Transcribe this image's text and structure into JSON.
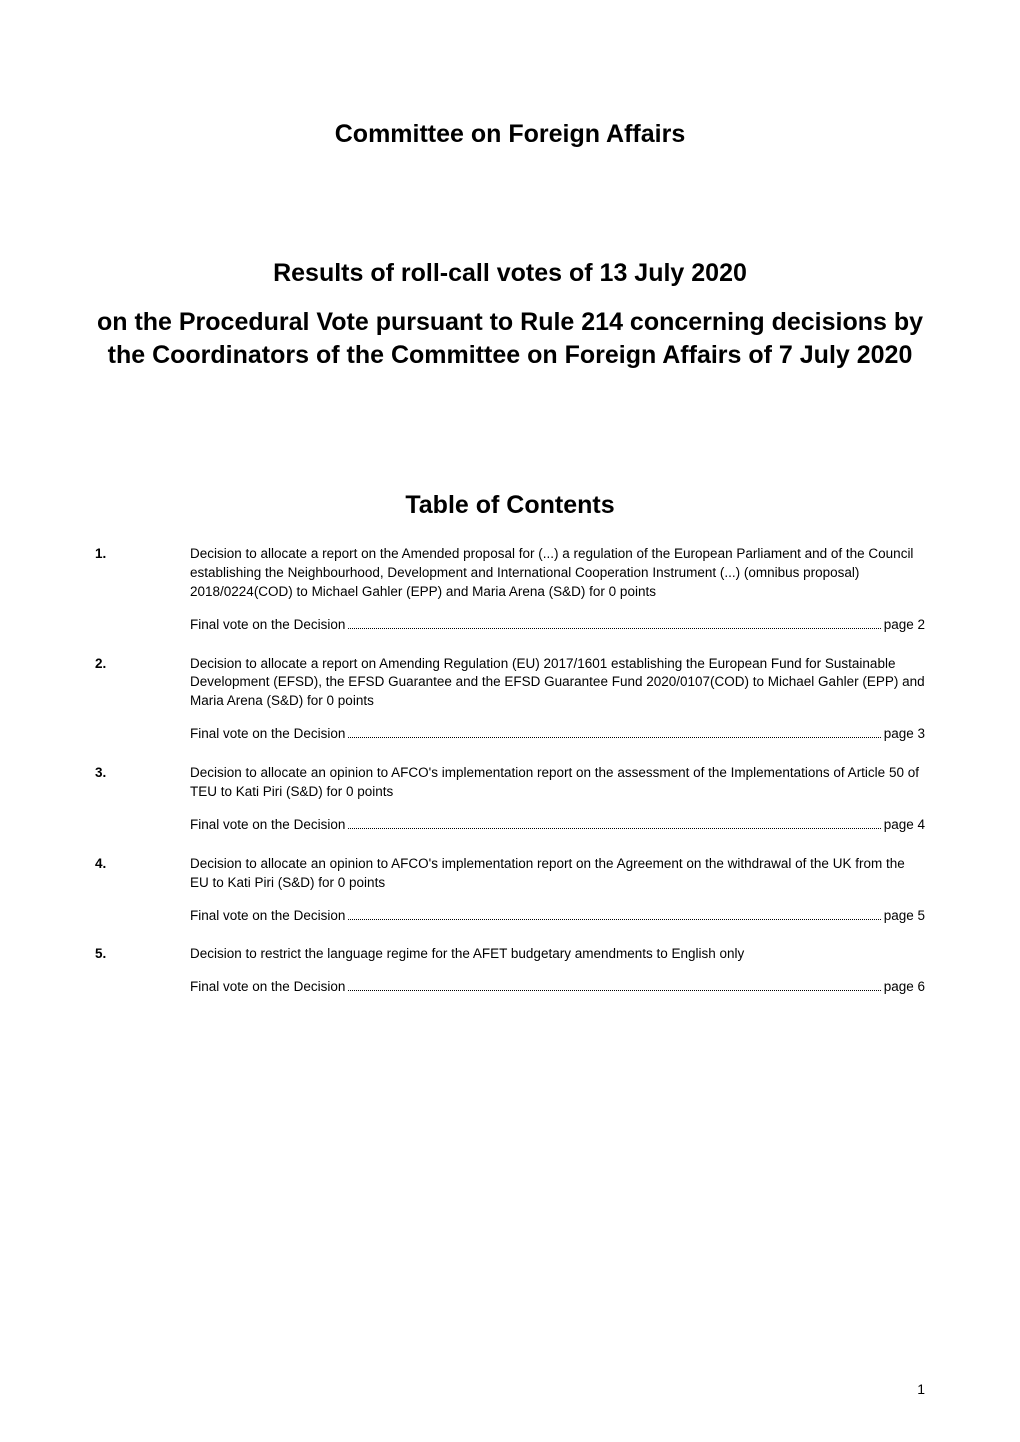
{
  "document": {
    "title": "Committee on Foreign Affairs",
    "subtitle_line1": "Results of roll-call votes of 13 July 2020",
    "subtitle_line2": "on the Procedural Vote pursuant to Rule 214 concerning decisions by the Coordinators of the Committee on Foreign Affairs of 7 July 2020",
    "toc_header": "Table of Contents",
    "page_number": "1",
    "background_color": "#ffffff",
    "text_color": "#000000",
    "title_fontsize": 25,
    "body_fontsize": 13.5,
    "toc_items": [
      {
        "number": "1.",
        "description": "Decision to allocate a report on the Amended proposal for (...) a regulation of the European Parliament and of the Council establishing the Neighbourhood, Development and International Cooperation Instrument (...) (omnibus proposal) 2018/0224(COD) to Michael Gahler (EPP) and Maria Arena (S&D) for 0 points",
        "vote_label": "Final vote on the Decision ",
        "page_ref": "page 2"
      },
      {
        "number": "2.",
        "description": "Decision to allocate a report on Amending Regulation (EU) 2017/1601 establishing the European Fund for Sustainable Development (EFSD), the EFSD Guarantee and the EFSD Guarantee Fund 2020/0107(COD) to Michael Gahler (EPP) and Maria Arena (S&D) for 0 points",
        "vote_label": "Final vote on the Decision ",
        "page_ref": "page 3"
      },
      {
        "number": "3.",
        "description": "Decision to allocate an opinion to AFCO's implementation report on the assessment of the Implementations of Article 50 of TEU to Kati Piri (S&D) for 0 points",
        "vote_label": "Final vote on the Decision ",
        "page_ref": "page 4"
      },
      {
        "number": "4.",
        "description": "Decision to allocate an opinion to AFCO's implementation report on the Agreement on the withdrawal of the UK from the EU to Kati Piri (S&D) for 0 points",
        "vote_label": "Final vote on the Decision ",
        "page_ref": "page 5"
      },
      {
        "number": "5.",
        "description": "Decision to restrict the language regime for the AFET budgetary amendments to English only",
        "vote_label": "Final vote on the Decision ",
        "page_ref": "page 6"
      }
    ]
  }
}
